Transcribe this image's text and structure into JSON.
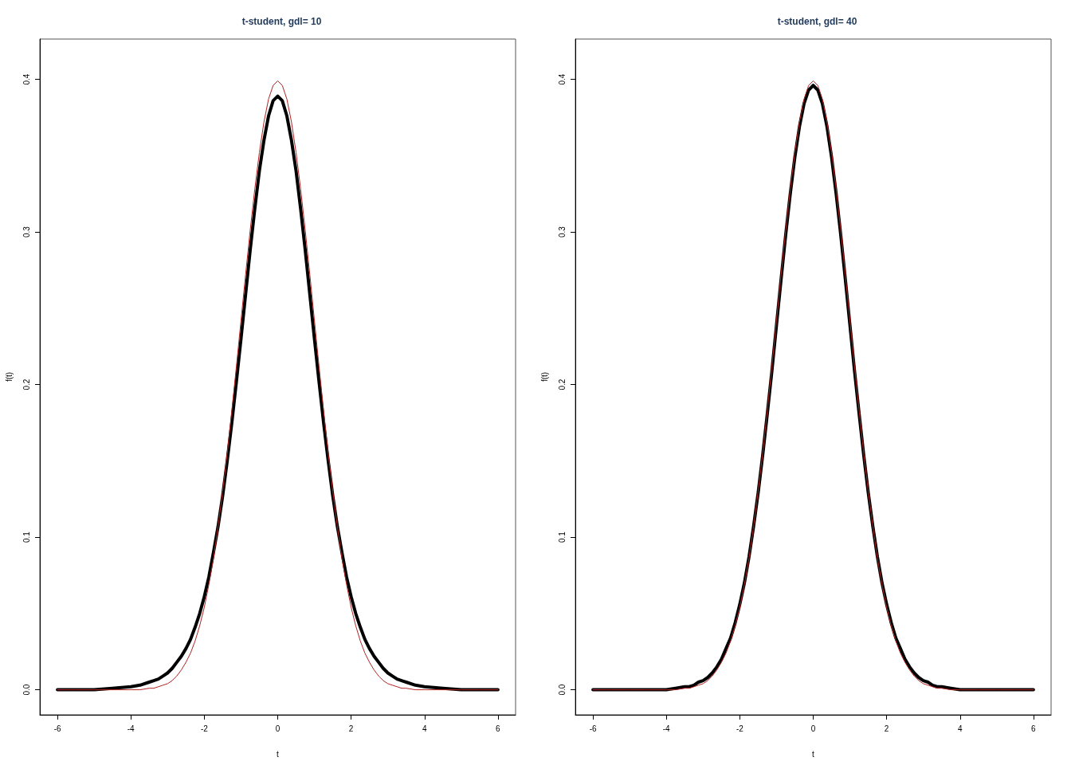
{
  "chart_data": [
    {
      "type": "line",
      "title": "t-student, gdl= 10",
      "xlabel": "t",
      "ylabel": "f(t)",
      "x": [
        -6,
        -5.5,
        -5,
        -4.5,
        -4,
        -3.75,
        -3.5,
        -3.375,
        -3.25,
        -3.125,
        -3,
        -2.875,
        -2.75,
        -2.625,
        -2.5,
        -2.375,
        -2.25,
        -2.125,
        -2,
        -1.875,
        -1.75,
        -1.625,
        -1.5,
        -1.375,
        -1.25,
        -1.125,
        -1,
        -0.875,
        -0.75,
        -0.625,
        -0.5,
        -0.375,
        -0.25,
        -0.125,
        0,
        0.125,
        0.25,
        0.375,
        0.5,
        0.625,
        0.75,
        0.875,
        1,
        1.125,
        1.25,
        1.375,
        1.5,
        1.625,
        1.75,
        1.875,
        2,
        2.125,
        2.25,
        2.375,
        2.5,
        2.625,
        2.75,
        2.875,
        3,
        3.125,
        3.25,
        3.375,
        3.5,
        3.75,
        4,
        4.5,
        5,
        5.5,
        6
      ],
      "series": [
        {
          "color": "#000000",
          "values": [
            0.0,
            0.0,
            0.0,
            0.001,
            0.002,
            0.003,
            0.005,
            0.006,
            0.007,
            0.009,
            0.011,
            0.014,
            0.018,
            0.022,
            0.027,
            0.033,
            0.041,
            0.05,
            0.061,
            0.074,
            0.09,
            0.107,
            0.127,
            0.15,
            0.175,
            0.202,
            0.23,
            0.259,
            0.288,
            0.315,
            0.34,
            0.36,
            0.376,
            0.386,
            0.389,
            0.386,
            0.376,
            0.36,
            0.34,
            0.315,
            0.288,
            0.259,
            0.23,
            0.202,
            0.175,
            0.15,
            0.127,
            0.107,
            0.09,
            0.074,
            0.061,
            0.05,
            0.041,
            0.033,
            0.027,
            0.022,
            0.018,
            0.014,
            0.011,
            0.009,
            0.007,
            0.006,
            0.005,
            0.003,
            0.002,
            0.001,
            0.0,
            0.0,
            0.0
          ]
        },
        {
          "color": "#b22222",
          "values": [
            0.0,
            0.0,
            0.0,
            0.0,
            0.0,
            0.0,
            0.001,
            0.001,
            0.002,
            0.003,
            0.004,
            0.006,
            0.009,
            0.013,
            0.018,
            0.024,
            0.032,
            0.042,
            0.054,
            0.069,
            0.086,
            0.107,
            0.13,
            0.155,
            0.183,
            0.212,
            0.242,
            0.272,
            0.301,
            0.328,
            0.352,
            0.372,
            0.387,
            0.396,
            0.399,
            0.396,
            0.387,
            0.372,
            0.352,
            0.328,
            0.301,
            0.272,
            0.242,
            0.212,
            0.183,
            0.155,
            0.13,
            0.107,
            0.086,
            0.069,
            0.054,
            0.042,
            0.032,
            0.024,
            0.018,
            0.013,
            0.009,
            0.006,
            0.004,
            0.003,
            0.002,
            0.001,
            0.001,
            0.0,
            0.0,
            0.0,
            0.0,
            0.0,
            0.0
          ]
        }
      ],
      "xlim": [
        -6.48,
        6.48
      ],
      "ylim": [
        -0.0164,
        0.4264
      ],
      "xticks": [
        -6,
        -4,
        -2,
        0,
        2,
        4,
        6
      ],
      "yticks": [
        {
          "value": 0,
          "label": "0.0"
        },
        {
          "value": 0.1,
          "label": "0.1"
        },
        {
          "value": 0.2,
          "label": "0.2"
        },
        {
          "value": 0.3,
          "label": "0.3"
        },
        {
          "value": 0.4,
          "label": "0.4"
        }
      ]
    },
    {
      "type": "line",
      "title": "t-student, gdl= 40",
      "xlabel": "t",
      "ylabel": "f(t)",
      "x": [
        -6,
        -5.5,
        -5,
        -4.5,
        -4,
        -3.75,
        -3.5,
        -3.375,
        -3.25,
        -3.125,
        -3,
        -2.875,
        -2.75,
        -2.625,
        -2.5,
        -2.375,
        -2.25,
        -2.125,
        -2,
        -1.875,
        -1.75,
        -1.625,
        -1.5,
        -1.375,
        -1.25,
        -1.125,
        -1,
        -0.875,
        -0.75,
        -0.625,
        -0.5,
        -0.375,
        -0.25,
        -0.125,
        0,
        0.125,
        0.25,
        0.375,
        0.5,
        0.625,
        0.75,
        0.875,
        1,
        1.125,
        1.25,
        1.375,
        1.5,
        1.625,
        1.75,
        1.875,
        2,
        2.125,
        2.25,
        2.375,
        2.5,
        2.625,
        2.75,
        2.875,
        3,
        3.125,
        3.25,
        3.375,
        3.5,
        3.75,
        4,
        4.5,
        5,
        5.5,
        6
      ],
      "series": [
        {
          "color": "#000000",
          "values": [
            0.0,
            0.0,
            0.0,
            0.0,
            0.0,
            0.001,
            0.002,
            0.002,
            0.003,
            0.005,
            0.006,
            0.008,
            0.011,
            0.015,
            0.02,
            0.027,
            0.034,
            0.044,
            0.056,
            0.07,
            0.087,
            0.107,
            0.129,
            0.154,
            0.181,
            0.209,
            0.239,
            0.269,
            0.298,
            0.325,
            0.349,
            0.369,
            0.384,
            0.393,
            0.396,
            0.393,
            0.384,
            0.369,
            0.349,
            0.325,
            0.298,
            0.269,
            0.239,
            0.209,
            0.181,
            0.154,
            0.129,
            0.107,
            0.087,
            0.07,
            0.056,
            0.044,
            0.034,
            0.027,
            0.02,
            0.015,
            0.011,
            0.008,
            0.006,
            0.005,
            0.003,
            0.002,
            0.002,
            0.001,
            0.0,
            0.0,
            0.0,
            0.0,
            0.0
          ]
        },
        {
          "color": "#b22222",
          "values": [
            0.0,
            0.0,
            0.0,
            0.0,
            0.0,
            0.0,
            0.001,
            0.001,
            0.002,
            0.003,
            0.004,
            0.006,
            0.009,
            0.013,
            0.018,
            0.024,
            0.032,
            0.042,
            0.054,
            0.069,
            0.086,
            0.107,
            0.13,
            0.155,
            0.183,
            0.212,
            0.242,
            0.272,
            0.301,
            0.328,
            0.352,
            0.372,
            0.387,
            0.396,
            0.399,
            0.396,
            0.387,
            0.372,
            0.352,
            0.328,
            0.301,
            0.272,
            0.242,
            0.212,
            0.183,
            0.155,
            0.13,
            0.107,
            0.086,
            0.069,
            0.054,
            0.042,
            0.032,
            0.024,
            0.018,
            0.013,
            0.009,
            0.006,
            0.004,
            0.003,
            0.002,
            0.001,
            0.001,
            0.0,
            0.0,
            0.0,
            0.0,
            0.0,
            0.0
          ]
        }
      ],
      "xlim": [
        -6.48,
        6.48
      ],
      "ylim": [
        -0.0164,
        0.4264
      ],
      "xticks": [
        -6,
        -4,
        -2,
        0,
        2,
        4,
        6
      ],
      "yticks": [
        {
          "value": 0,
          "label": "0.0"
        },
        {
          "value": 0.1,
          "label": "0.1"
        },
        {
          "value": 0.2,
          "label": "0.2"
        },
        {
          "value": 0.3,
          "label": "0.3"
        },
        {
          "value": 0.4,
          "label": "0.4"
        }
      ]
    }
  ]
}
